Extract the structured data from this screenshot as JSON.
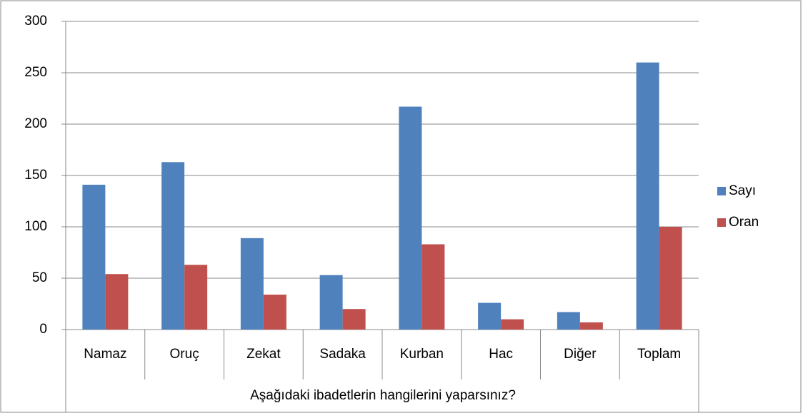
{
  "chart_data": {
    "type": "bar",
    "x_group_label": "Aşağıdaki ibadetlerin hangilerini yaparsınız?",
    "categories": [
      "Namaz",
      "Oruç",
      "Zekat",
      "Sadaka",
      "Kurban",
      "Hac",
      "Diğer",
      "Toplam"
    ],
    "series": [
      {
        "name": "Sayı",
        "color": "#4f81bd",
        "values": [
          141,
          163,
          89,
          53,
          217,
          26,
          17,
          260
        ]
      },
      {
        "name": "Oran",
        "color": "#c0504d",
        "values": [
          54,
          63,
          34,
          20,
          83,
          10,
          7,
          100
        ]
      }
    ],
    "ylim": [
      0,
      300
    ],
    "yticks": [
      0,
      50,
      100,
      150,
      200,
      250,
      300
    ],
    "grid": true,
    "legend": "right"
  }
}
